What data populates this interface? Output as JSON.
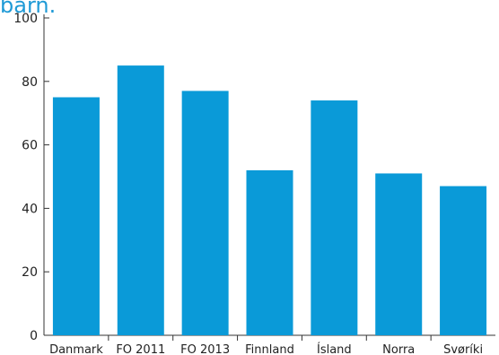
{
  "chart_data": {
    "type": "bar",
    "title": "barn.",
    "categories": [
      "Danmark",
      "FO 2011",
      "FO 2013",
      "Finnland",
      "Ísland",
      "Norra",
      "Svøríki"
    ],
    "values": [
      75,
      85,
      77,
      52,
      74,
      51,
      47
    ],
    "ylim": [
      0,
      100
    ],
    "yticks": [
      0,
      20,
      40,
      60,
      80,
      100
    ],
    "xlabel": "",
    "ylabel": "",
    "grid": false,
    "colors": {
      "bar": "#0a9ad8",
      "axis": "#333333",
      "title": "#1f9ad6"
    }
  }
}
